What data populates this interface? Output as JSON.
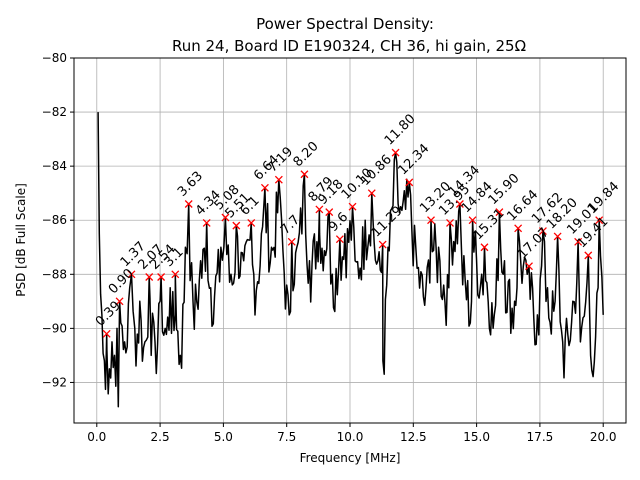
{
  "chart_data": {
    "type": "line",
    "title_line1": "Power Spectral Density:",
    "title_line2": "Run 24, Board ID E190324, CH 36, hi gain, 25Ω",
    "xlabel": "Frequency [MHz]",
    "ylabel": "PSD [dB Full Scale]",
    "xlim": [
      -0.9,
      20.9
    ],
    "ylim": [
      -93.5,
      -80
    ],
    "xticks": [
      0.0,
      2.5,
      5.0,
      7.5,
      10.0,
      12.5,
      15.0,
      17.5,
      20.0
    ],
    "xtick_labels": [
      "0.0",
      "2.5",
      "5.0",
      "7.5",
      "10.0",
      "12.5",
      "15.0",
      "17.5",
      "20.0"
    ],
    "yticks": [
      -92,
      -90,
      -88,
      -86,
      -84,
      -82,
      -80
    ],
    "ytick_labels": [
      "−92",
      "−90",
      "−88",
      "−86",
      "−84",
      "−82",
      "−80"
    ],
    "grid": true,
    "line_color": "#000000",
    "marker_color": "#ff0000",
    "marker_symbol": "x",
    "series_key_points": [
      [
        0.05,
        -82.0
      ],
      [
        0.1,
        -86.5
      ],
      [
        0.2,
        -89.5
      ],
      [
        0.3,
        -91.2
      ],
      [
        0.4,
        -90.8
      ],
      [
        0.5,
        -91.5
      ],
      [
        0.6,
        -90.5
      ],
      [
        0.7,
        -91.0
      ],
      [
        0.8,
        -90.0
      ],
      [
        0.85,
        -92.9
      ],
      [
        0.95,
        -89.8
      ],
      [
        1.1,
        -90.5
      ],
      [
        1.3,
        -88.5
      ],
      [
        1.5,
        -90.0
      ],
      [
        1.7,
        -89.0
      ],
      [
        1.9,
        -90.5
      ],
      [
        2.1,
        -88.9
      ],
      [
        2.3,
        -90.5
      ],
      [
        2.5,
        -89.0
      ],
      [
        2.7,
        -90.0
      ],
      [
        2.9,
        -88.5
      ],
      [
        3.1,
        -89.5
      ],
      [
        3.3,
        -91.0
      ],
      [
        3.5,
        -87.0
      ],
      [
        3.8,
        -89.0
      ],
      [
        4.1,
        -87.5
      ],
      [
        4.5,
        -88.5
      ],
      [
        4.9,
        -87.0
      ],
      [
        5.3,
        -88.0
      ],
      [
        5.8,
        -87.5
      ],
      [
        6.2,
        -88.0
      ],
      [
        6.5,
        -86.5
      ],
      [
        6.9,
        -87.0
      ],
      [
        7.3,
        -86.0
      ],
      [
        7.6,
        -89.5
      ],
      [
        7.9,
        -87.0
      ],
      [
        8.4,
        -87.5
      ],
      [
        8.8,
        -86.5
      ],
      [
        9.3,
        -88.0
      ],
      [
        9.8,
        -86.5
      ],
      [
        10.2,
        -87.5
      ],
      [
        10.6,
        -86.0
      ],
      [
        11.1,
        -87.5
      ],
      [
        11.3,
        -91.2
      ],
      [
        11.5,
        -87.0
      ],
      [
        12.0,
        -85.5
      ],
      [
        12.6,
        -87.0
      ],
      [
        13.0,
        -88.5
      ],
      [
        13.5,
        -87.0
      ],
      [
        13.9,
        -88.5
      ],
      [
        14.4,
        -87.0
      ],
      [
        14.8,
        -89.0
      ],
      [
        15.2,
        -88.0
      ],
      [
        15.7,
        -89.5
      ],
      [
        16.1,
        -87.5
      ],
      [
        16.5,
        -89.0
      ],
      [
        17.0,
        -88.0
      ],
      [
        17.4,
        -89.5
      ],
      [
        17.8,
        -88.5
      ],
      [
        18.1,
        -89.0
      ],
      [
        18.4,
        -90.5
      ],
      [
        18.8,
        -89.0
      ],
      [
        19.1,
        -90.5
      ],
      [
        19.5,
        -91.0
      ],
      [
        19.8,
        -88.5
      ],
      [
        20.0,
        -89.5
      ]
    ],
    "peaks": [
      {
        "x": 0.39,
        "y": -90.2,
        "label": "0.39"
      },
      {
        "x": 0.9,
        "y": -89.0,
        "label": "0.90"
      },
      {
        "x": 1.37,
        "y": -88.0,
        "label": "1.37"
      },
      {
        "x": 2.07,
        "y": -88.1,
        "label": "2.07"
      },
      {
        "x": 2.54,
        "y": -88.1,
        "label": "2.54"
      },
      {
        "x": 3.1,
        "y": -88.0,
        "label": "3.1"
      },
      {
        "x": 3.63,
        "y": -85.4,
        "label": "3.63"
      },
      {
        "x": 4.34,
        "y": -86.1,
        "label": "4.34"
      },
      {
        "x": 5.08,
        "y": -85.9,
        "label": "5.08"
      },
      {
        "x": 5.51,
        "y": -86.2,
        "label": "5.51"
      },
      {
        "x": 6.1,
        "y": -86.1,
        "label": "6.1"
      },
      {
        "x": 6.64,
        "y": -84.8,
        "label": "6.64"
      },
      {
        "x": 7.19,
        "y": -84.5,
        "label": "7.19"
      },
      {
        "x": 7.7,
        "y": -86.8,
        "label": "7.7"
      },
      {
        "x": 8.2,
        "y": -84.3,
        "label": "8.20"
      },
      {
        "x": 8.79,
        "y": -85.6,
        "label": "8.79"
      },
      {
        "x": 9.18,
        "y": -85.7,
        "label": "9.18"
      },
      {
        "x": 9.6,
        "y": -86.7,
        "label": "9.6"
      },
      {
        "x": 10.1,
        "y": -85.5,
        "label": "10.10"
      },
      {
        "x": 10.86,
        "y": -85.0,
        "label": "10.86"
      },
      {
        "x": 11.29,
        "y": -86.9,
        "label": "11.29"
      },
      {
        "x": 11.8,
        "y": -83.5,
        "label": "11.80"
      },
      {
        "x": 12.34,
        "y": -84.6,
        "label": "12.34"
      },
      {
        "x": 13.2,
        "y": -86.0,
        "label": "13.20"
      },
      {
        "x": 13.95,
        "y": -86.1,
        "label": "13.95"
      },
      {
        "x": 14.34,
        "y": -85.4,
        "label": "14.34"
      },
      {
        "x": 14.84,
        "y": -86.0,
        "label": "14.84"
      },
      {
        "x": 15.31,
        "y": -87.0,
        "label": "15.31"
      },
      {
        "x": 15.9,
        "y": -85.7,
        "label": "15.90"
      },
      {
        "x": 16.64,
        "y": -86.3,
        "label": "16.64"
      },
      {
        "x": 17.07,
        "y": -87.7,
        "label": "17.07"
      },
      {
        "x": 17.62,
        "y": -86.4,
        "label": "17.62"
      },
      {
        "x": 18.2,
        "y": -86.6,
        "label": "18.20"
      },
      {
        "x": 19.01,
        "y": -86.8,
        "label": "19.01"
      },
      {
        "x": 19.41,
        "y": -87.3,
        "label": "19.41"
      },
      {
        "x": 19.84,
        "y": -86.0,
        "label": "19.84"
      }
    ]
  }
}
